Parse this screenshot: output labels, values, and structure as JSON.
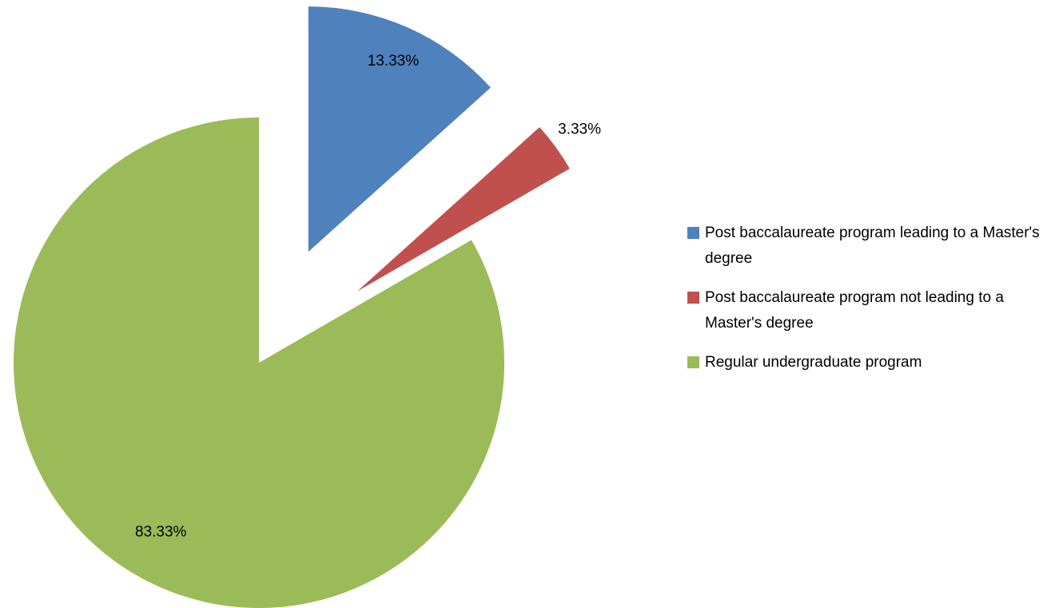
{
  "chart_data": {
    "type": "pie",
    "categories": [
      "Post baccalaureate program leading to a Master's degree",
      "Post baccalaureate program not leading to a Master's degree",
      "Regular undergraduate program"
    ],
    "values": [
      13.33,
      3.33,
      83.33
    ],
    "value_labels": [
      "13.33%",
      "3.33%",
      "83.33%"
    ],
    "colors": [
      "#4f81bd",
      "#c0504d",
      "#9bbb59"
    ],
    "legend": "right"
  }
}
